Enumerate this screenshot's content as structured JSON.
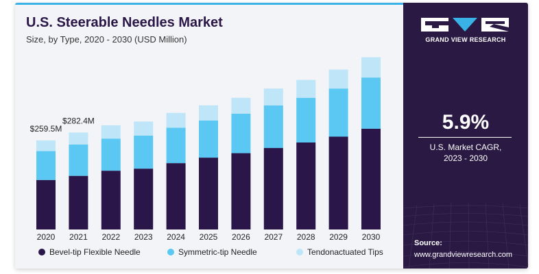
{
  "header": {
    "title": "U.S. Steerable Needles Market",
    "subtitle": "Size, by Type, 2020 - 2030 (USD Million)"
  },
  "chart_data": {
    "type": "bar",
    "stacked": true,
    "categories": [
      "2020",
      "2021",
      "2022",
      "2023",
      "2024",
      "2025",
      "2026",
      "2027",
      "2028",
      "2029",
      "2030"
    ],
    "series": [
      {
        "name": "Bevel-tip Flexible Needle",
        "color": "#2b1649",
        "values": [
          144,
          156,
          171,
          177,
          193,
          209,
          222,
          237,
          253,
          270,
          293
        ]
      },
      {
        "name": "Symmetric-tip Needle",
        "color": "#5ac8f2",
        "values": [
          84,
          91,
          93,
          96,
          103,
          108,
          115,
          124,
          130,
          140,
          149
        ]
      },
      {
        "name": "Tendonactuated Tips",
        "color": "#bfe6f8",
        "values": [
          31,
          35,
          39,
          41,
          43,
          44,
          46,
          49,
          52,
          55,
          59
        ]
      }
    ],
    "data_labels": [
      {
        "category": "2020",
        "text": "$259.5M"
      },
      {
        "category": "2021",
        "text": "$282.4M"
      }
    ],
    "ylim": [
      0,
      520
    ],
    "grid": false,
    "legend": "bottom"
  },
  "brand": {
    "name": "GRAND VIEW RESEARCH",
    "cagr_value": "5.9%",
    "cagr_label_line1": "U.S. Market CAGR,",
    "cagr_label_line2": "2023 - 2030",
    "source_label": "Source:",
    "source_url": "www.grandviewresearch.com"
  },
  "colors": {
    "panel": "#2a1a43",
    "accent": "#39b2e6",
    "background": "#f2f4f7"
  }
}
